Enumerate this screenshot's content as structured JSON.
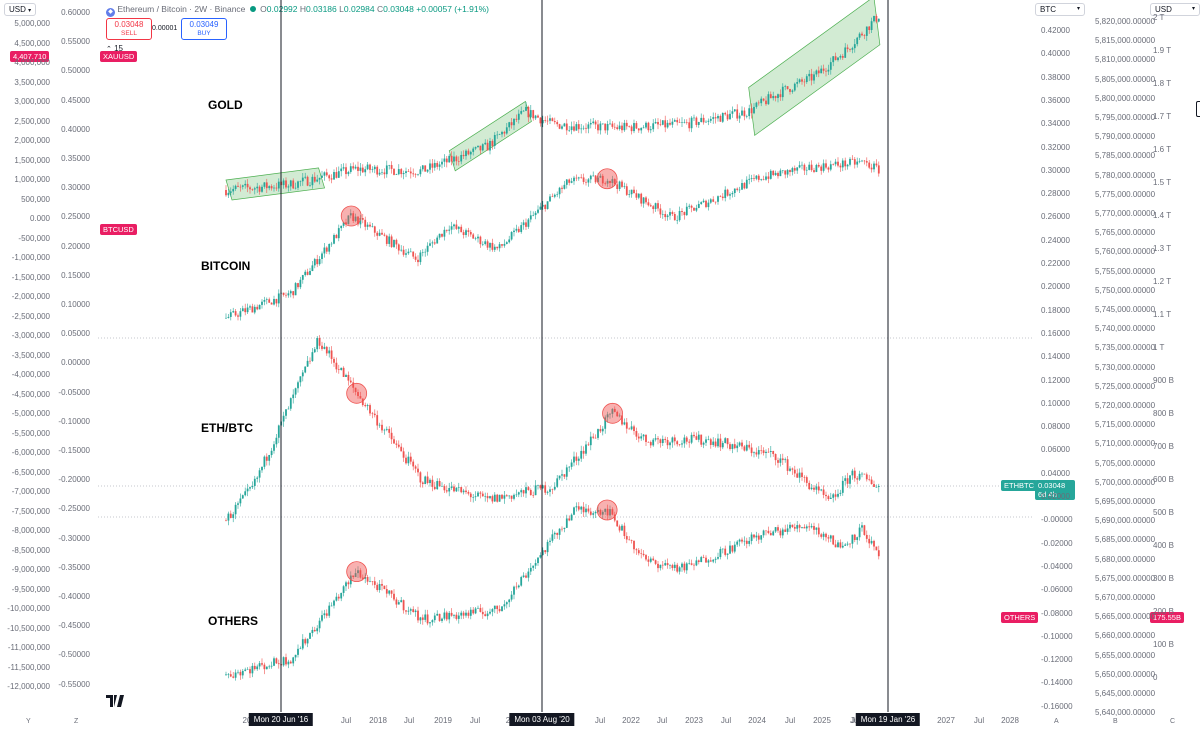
{
  "header": {
    "symbol_title": "Ethereum / Bitcoin · 2W · Binance",
    "o_label": "O",
    "o_value": "0.02992",
    "h_label": "H",
    "h_value": "0.03186",
    "l_label": "L",
    "l_value": "0.02984",
    "c_label": "C",
    "c_value": "0.03048",
    "change": "+0.00057 (+1.91%)",
    "sell_price": "0.03048",
    "sell_label": "SELL",
    "spread": "0.00001",
    "buy_price": "0.03049",
    "buy_label": "BUY",
    "indicator_count": "15"
  },
  "corner_labels": {
    "left_currency": "USD",
    "right_symbol": "BTC",
    "right_currency": "USD"
  },
  "tags": {
    "xauusd_value": "4,407.710",
    "xauusd_name": "XAUUSD",
    "btcusd_name": "BTCUSD",
    "ethbtc_name": "ETHBTC",
    "ethbtc_value": "0.03048",
    "ethbtc_countdown": "6d 4h",
    "others_name": "OTHERS",
    "others_value": "175.55B"
  },
  "left_axis_1": [
    "5,000,000",
    "4,500,000",
    "4,000,000",
    "3,500,000",
    "3,000,000",
    "2,500,000",
    "2,000,000",
    "1,500,000",
    "1,000,000",
    "500,000",
    "0.000",
    "-500,000",
    "-1,000,000",
    "-1,500,000",
    "-2,000,000",
    "-2,500,000",
    "-3,000,000",
    "-3,500,000",
    "-4,000,000",
    "-4,500,000",
    "-5,000,000",
    "-5,500,000",
    "-6,000,000",
    "-6,500,000",
    "-7,000,000",
    "-7,500,000",
    "-8,000,000",
    "-8,500,000",
    "-9,000,000",
    "-9,500,000",
    "-10,000,000",
    "-10,500,000",
    "-11,000,000",
    "-11,500,000",
    "-12,000,000"
  ],
  "left_axis_2": [
    "0.60000",
    "0.55000",
    "0.50000",
    "0.45000",
    "0.40000",
    "0.35000",
    "0.30000",
    "0.25000",
    "0.20000",
    "0.15000",
    "0.10000",
    "0.05000",
    "0.00000",
    "-0.05000",
    "-0.10000",
    "-0.15000",
    "-0.20000",
    "-0.25000",
    "-0.30000",
    "-0.35000",
    "-0.40000",
    "-0.45000",
    "-0.50000",
    "-0.55000"
  ],
  "right_axis_1": [
    "0.42000",
    "0.40000",
    "0.38000",
    "0.36000",
    "0.34000",
    "0.32000",
    "0.30000",
    "0.28000",
    "0.26000",
    "0.24000",
    "0.22000",
    "0.20000",
    "0.18000",
    "0.16000",
    "0.14000",
    "0.12000",
    "0.10000",
    "0.08000",
    "0.06000",
    "0.04000",
    "0.02000",
    "-0.00000",
    "-0.02000",
    "-0.04000",
    "-0.06000",
    "-0.08000",
    "-0.10000",
    "-0.12000",
    "-0.14000",
    "-0.16000"
  ],
  "right_axis_2": [
    "5,820,000.00000",
    "5,815,000.00000",
    "5,810,000.00000",
    "5,805,000.00000",
    "5,800,000.00000",
    "5,795,000.00000",
    "5,790,000.00000",
    "5,785,000.00000",
    "5,780,000.00000",
    "5,775,000.00000",
    "5,770,000.00000",
    "5,765,000.00000",
    "5,760,000.00000",
    "5,755,000.00000",
    "5,750,000.00000",
    "5,745,000.00000",
    "5,740,000.00000",
    "5,735,000.00000",
    "5,730,000.00000",
    "5,725,000.00000",
    "5,720,000.00000",
    "5,715,000.00000",
    "5,710,000.00000",
    "5,705,000.00000",
    "5,700,000.00000",
    "5,695,000.00000",
    "5,690,000.00000",
    "5,685,000.00000",
    "5,680,000.00000",
    "5,675,000.00000",
    "5,670,000.00000",
    "5,665,000.00000",
    "5,660,000.00000",
    "5,655,000.00000",
    "5,650,000.00000",
    "5,645,000.00000",
    "5,640,000.00000"
  ],
  "right_axis_3": [
    "2 T",
    "1.9 T",
    "1.8 T",
    "1.7 T",
    "1.6 T",
    "1.5 T",
    "1.4 T",
    "1.3 T",
    "1.2 T",
    "1.1 T",
    "1 T",
    "900 B",
    "800 B",
    "700 B",
    "600 B",
    "500 B",
    "400 B",
    "300 B",
    "200 B",
    "100 B",
    "0"
  ],
  "x_axis": {
    "labels": [
      "Jul",
      "2018",
      "Jul",
      "2019",
      "Jul",
      "Jul",
      "2022",
      "Jul",
      "2023",
      "Jul",
      "2024",
      "Jul",
      "2025",
      "Jul",
      "2027",
      "Jul",
      "2028"
    ],
    "partial_labels": [
      "20",
      "2",
      "J"
    ],
    "markers": [
      "Mon 20 Jun '16",
      "Mon 03 Aug '20",
      "Mon 19 Jan '26"
    ]
  },
  "footer_axis_letters": [
    "Y",
    "Z",
    "A",
    "B",
    "C"
  ],
  "chart_data": {
    "type": "candlestick",
    "interval": "2W",
    "panels": [
      {
        "name": "GOLD",
        "symbol": "XAUUSD",
        "last": 4407.71,
        "x": [
          "2016-01",
          "2017-01",
          "2018-01",
          "2019-01",
          "2020-01",
          "2020-08",
          "2021-01",
          "2022-01",
          "2023-01",
          "2024-01",
          "2024-07",
          "2025-01",
          "2025-07",
          "2026-01"
        ],
        "values": [
          1100,
          1150,
          1300,
          1280,
          1550,
          2050,
          1850,
          1800,
          1850,
          2050,
          2400,
          2700,
          3350,
          4400
        ]
      },
      {
        "name": "BITCOIN",
        "symbol": "BTCUSD",
        "x": [
          "2016-01",
          "2017-01",
          "2017-12",
          "2018-12",
          "2019-06",
          "2020-03",
          "2021-04",
          "2021-11",
          "2022-11",
          "2023-06",
          "2024-03",
          "2024-12",
          "2025-10",
          "2026-01"
        ],
        "values": [
          400,
          1000,
          17000,
          3500,
          12000,
          5000,
          60000,
          67000,
          16000,
          30000,
          70000,
          100000,
          124000,
          92000
        ]
      },
      {
        "name": "ETH/BTC",
        "symbol": "ETHBTC",
        "last": 0.03048,
        "countdown": "6d 4h",
        "x": [
          "2016-01",
          "2016-06",
          "2017-06",
          "2018-01",
          "2019-01",
          "2020-01",
          "2021-01",
          "2021-12",
          "2022-06",
          "2023-06",
          "2024-06",
          "2025-04",
          "2025-08",
          "2026-01"
        ],
        "values": [
          0.005,
          0.03,
          0.14,
          0.1,
          0.035,
          0.02,
          0.03,
          0.085,
          0.065,
          0.065,
          0.053,
          0.018,
          0.04,
          0.03048
        ]
      },
      {
        "name": "OTHERS",
        "symbol": "OTHERS",
        "last": "175.55B",
        "x": [
          "2016-01",
          "2017-01",
          "2018-01",
          "2019-01",
          "2020-03",
          "2021-05",
          "2021-11",
          "2022-06",
          "2023-01",
          "2024-03",
          "2024-12",
          "2025-06",
          "2025-10",
          "2026-01"
        ],
        "values": [
          10,
          15,
          130,
          40,
          50,
          600,
          600,
          170,
          140,
          320,
          420,
          240,
          380,
          175
        ]
      }
    ]
  }
}
